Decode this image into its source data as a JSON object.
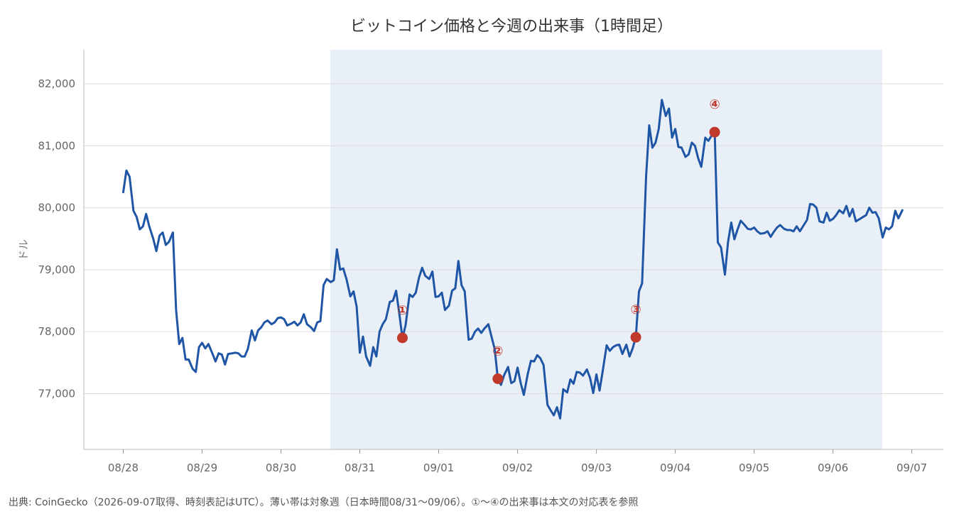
{
  "chart_data": {
    "type": "line",
    "title": "ビットコイン価格と今週の出来事（1時間足）",
    "ylabel": "ドル",
    "xlabel": "",
    "source": "出典: CoinGecko（2026-09-07取得、時刻表記はUTC）。薄い帯は対象週（日本時間08/31〜09/06）。①〜④の出来事は本文の対応表を参照",
    "ylim": [
      76100,
      82550
    ],
    "xlim": [
      -0.5,
      10.4
    ],
    "grid": true,
    "colors": {
      "line": "#1f55a5",
      "marker": "#c0392b",
      "band": "#e9eff7",
      "grid": "#dcdcdc",
      "axis": "#bbbbbb"
    },
    "x_ticks": [
      "08/28",
      "08/29",
      "08/30",
      "08/31",
      "09/01",
      "09/02",
      "09/03",
      "09/04",
      "09/05",
      "09/06",
      "09/07"
    ],
    "y_ticks": [
      {
        "value": 77000,
        "label": "77,000"
      },
      {
        "value": 78000,
        "label": "78,000"
      },
      {
        "value": 79000,
        "label": "79,000"
      },
      {
        "value": 80000,
        "label": "80,000"
      },
      {
        "value": 81000,
        "label": "81,000"
      },
      {
        "value": 82000,
        "label": "82,000"
      }
    ],
    "highlight_band": {
      "from": 2.625,
      "to": 9.625
    },
    "series": [
      {
        "points": [
          [
            0.0,
            80250
          ],
          [
            0.04,
            80600
          ],
          [
            0.08,
            80500
          ],
          [
            0.13,
            79950
          ],
          [
            0.17,
            79850
          ],
          [
            0.21,
            79650
          ],
          [
            0.25,
            79700
          ],
          [
            0.29,
            79900
          ],
          [
            0.33,
            79700
          ],
          [
            0.38,
            79500
          ],
          [
            0.42,
            79300
          ],
          [
            0.46,
            79550
          ],
          [
            0.5,
            79600
          ],
          [
            0.54,
            79400
          ],
          [
            0.58,
            79450
          ],
          [
            0.63,
            79600
          ],
          [
            0.67,
            78350
          ],
          [
            0.71,
            77800
          ],
          [
            0.75,
            77900
          ],
          [
            0.79,
            77550
          ],
          [
            0.83,
            77550
          ],
          [
            0.88,
            77400
          ],
          [
            0.92,
            77350
          ],
          [
            0.96,
            77750
          ],
          [
            1.0,
            77820
          ],
          [
            1.04,
            77730
          ],
          [
            1.08,
            77800
          ],
          [
            1.13,
            77650
          ],
          [
            1.17,
            77520
          ],
          [
            1.21,
            77650
          ],
          [
            1.25,
            77630
          ],
          [
            1.29,
            77470
          ],
          [
            1.33,
            77640
          ],
          [
            1.38,
            77650
          ],
          [
            1.42,
            77660
          ],
          [
            1.46,
            77650
          ],
          [
            1.5,
            77600
          ],
          [
            1.54,
            77600
          ],
          [
            1.58,
            77720
          ],
          [
            1.63,
            78020
          ],
          [
            1.67,
            77860
          ],
          [
            1.71,
            78020
          ],
          [
            1.75,
            78070
          ],
          [
            1.79,
            78150
          ],
          [
            1.83,
            78180
          ],
          [
            1.88,
            78120
          ],
          [
            1.92,
            78150
          ],
          [
            1.96,
            78220
          ],
          [
            2.0,
            78230
          ],
          [
            2.04,
            78200
          ],
          [
            2.08,
            78100
          ],
          [
            2.13,
            78130
          ],
          [
            2.17,
            78160
          ],
          [
            2.21,
            78100
          ],
          [
            2.25,
            78150
          ],
          [
            2.29,
            78280
          ],
          [
            2.33,
            78120
          ],
          [
            2.38,
            78070
          ],
          [
            2.42,
            78010
          ],
          [
            2.46,
            78150
          ],
          [
            2.5,
            78170
          ],
          [
            2.54,
            78750
          ],
          [
            2.58,
            78850
          ],
          [
            2.63,
            78800
          ],
          [
            2.67,
            78830
          ],
          [
            2.71,
            79330
          ],
          [
            2.75,
            79000
          ],
          [
            2.79,
            79020
          ],
          [
            2.83,
            78850
          ],
          [
            2.88,
            78570
          ],
          [
            2.92,
            78650
          ],
          [
            2.96,
            78400
          ],
          [
            3.0,
            77660
          ],
          [
            3.04,
            77920
          ],
          [
            3.08,
            77600
          ],
          [
            3.13,
            77450
          ],
          [
            3.17,
            77750
          ],
          [
            3.21,
            77600
          ],
          [
            3.25,
            78000
          ],
          [
            3.29,
            78120
          ],
          [
            3.33,
            78200
          ],
          [
            3.38,
            78480
          ],
          [
            3.42,
            78500
          ],
          [
            3.46,
            78660
          ],
          [
            3.5,
            78300
          ],
          [
            3.54,
            77900
          ],
          [
            3.58,
            78100
          ],
          [
            3.63,
            78600
          ],
          [
            3.67,
            78560
          ],
          [
            3.71,
            78630
          ],
          [
            3.75,
            78870
          ],
          [
            3.79,
            79030
          ],
          [
            3.83,
            78900
          ],
          [
            3.88,
            78850
          ],
          [
            3.92,
            78970
          ],
          [
            3.96,
            78560
          ],
          [
            4.0,
            78570
          ],
          [
            4.04,
            78630
          ],
          [
            4.08,
            78350
          ],
          [
            4.13,
            78420
          ],
          [
            4.17,
            78660
          ],
          [
            4.21,
            78700
          ],
          [
            4.25,
            79140
          ],
          [
            4.29,
            78750
          ],
          [
            4.33,
            78650
          ],
          [
            4.38,
            77870
          ],
          [
            4.42,
            77890
          ],
          [
            4.46,
            78000
          ],
          [
            4.5,
            78050
          ],
          [
            4.54,
            77980
          ],
          [
            4.58,
            78050
          ],
          [
            4.63,
            78120
          ],
          [
            4.67,
            77920
          ],
          [
            4.71,
            77720
          ],
          [
            4.75,
            77240
          ],
          [
            4.79,
            77140
          ],
          [
            4.83,
            77300
          ],
          [
            4.88,
            77430
          ],
          [
            4.92,
            77170
          ],
          [
            4.96,
            77200
          ],
          [
            5.0,
            77420
          ],
          [
            5.04,
            77170
          ],
          [
            5.08,
            76980
          ],
          [
            5.13,
            77320
          ],
          [
            5.17,
            77530
          ],
          [
            5.21,
            77520
          ],
          [
            5.25,
            77620
          ],
          [
            5.29,
            77570
          ],
          [
            5.33,
            77460
          ],
          [
            5.38,
            76820
          ],
          [
            5.42,
            76730
          ],
          [
            5.46,
            76650
          ],
          [
            5.5,
            76780
          ],
          [
            5.54,
            76600
          ],
          [
            5.58,
            77070
          ],
          [
            5.63,
            77020
          ],
          [
            5.67,
            77230
          ],
          [
            5.71,
            77160
          ],
          [
            5.75,
            77350
          ],
          [
            5.79,
            77340
          ],
          [
            5.83,
            77290
          ],
          [
            5.88,
            77390
          ],
          [
            5.92,
            77250
          ],
          [
            5.96,
            77010
          ],
          [
            6.0,
            77310
          ],
          [
            6.04,
            77050
          ],
          [
            6.08,
            77360
          ],
          [
            6.13,
            77780
          ],
          [
            6.17,
            77690
          ],
          [
            6.21,
            77750
          ],
          [
            6.25,
            77780
          ],
          [
            6.29,
            77790
          ],
          [
            6.33,
            77640
          ],
          [
            6.38,
            77790
          ],
          [
            6.42,
            77600
          ],
          [
            6.46,
            77730
          ],
          [
            6.5,
            77910
          ],
          [
            6.54,
            78650
          ],
          [
            6.58,
            78780
          ],
          [
            6.63,
            80500
          ],
          [
            6.67,
            81330
          ],
          [
            6.71,
            80970
          ],
          [
            6.75,
            81050
          ],
          [
            6.79,
            81270
          ],
          [
            6.83,
            81740
          ],
          [
            6.88,
            81480
          ],
          [
            6.92,
            81600
          ],
          [
            6.96,
            81130
          ],
          [
            7.0,
            81270
          ],
          [
            7.04,
            80980
          ],
          [
            7.08,
            80970
          ],
          [
            7.13,
            80820
          ],
          [
            7.17,
            80860
          ],
          [
            7.21,
            81050
          ],
          [
            7.25,
            81000
          ],
          [
            7.29,
            80800
          ],
          [
            7.33,
            80660
          ],
          [
            7.38,
            81130
          ],
          [
            7.42,
            81080
          ],
          [
            7.46,
            81160
          ],
          [
            7.5,
            81220
          ],
          [
            7.54,
            79440
          ],
          [
            7.58,
            79360
          ],
          [
            7.63,
            78920
          ],
          [
            7.67,
            79450
          ],
          [
            7.71,
            79760
          ],
          [
            7.75,
            79490
          ],
          [
            7.79,
            79650
          ],
          [
            7.83,
            79790
          ],
          [
            7.88,
            79720
          ],
          [
            7.92,
            79660
          ],
          [
            7.96,
            79650
          ],
          [
            8.0,
            79680
          ],
          [
            8.04,
            79620
          ],
          [
            8.08,
            79580
          ],
          [
            8.13,
            79590
          ],
          [
            8.17,
            79620
          ],
          [
            8.21,
            79530
          ],
          [
            8.25,
            79610
          ],
          [
            8.29,
            79680
          ],
          [
            8.33,
            79720
          ],
          [
            8.38,
            79660
          ],
          [
            8.42,
            79640
          ],
          [
            8.46,
            79640
          ],
          [
            8.5,
            79620
          ],
          [
            8.54,
            79700
          ],
          [
            8.58,
            79620
          ],
          [
            8.63,
            79720
          ],
          [
            8.67,
            79800
          ],
          [
            8.71,
            80060
          ],
          [
            8.75,
            80050
          ],
          [
            8.79,
            80000
          ],
          [
            8.83,
            79780
          ],
          [
            8.88,
            79760
          ],
          [
            8.92,
            79920
          ],
          [
            8.96,
            79790
          ],
          [
            9.0,
            79820
          ],
          [
            9.04,
            79880
          ],
          [
            9.08,
            79960
          ],
          [
            9.13,
            79910
          ],
          [
            9.17,
            80030
          ],
          [
            9.21,
            79860
          ],
          [
            9.25,
            79980
          ],
          [
            9.29,
            79780
          ],
          [
            9.33,
            79810
          ],
          [
            9.38,
            79850
          ],
          [
            9.42,
            79880
          ],
          [
            9.46,
            80000
          ],
          [
            9.5,
            79920
          ],
          [
            9.54,
            79930
          ],
          [
            9.58,
            79830
          ],
          [
            9.63,
            79520
          ],
          [
            9.67,
            79680
          ],
          [
            9.71,
            79650
          ],
          [
            9.75,
            79700
          ],
          [
            9.79,
            79950
          ],
          [
            9.83,
            79830
          ],
          [
            9.88,
            79960
          ]
        ]
      }
    ],
    "events": [
      {
        "x": 3.54,
        "y": 77900,
        "label": "①"
      },
      {
        "x": 4.75,
        "y": 77240,
        "label": "②"
      },
      {
        "x": 6.5,
        "y": 77910,
        "label": "③"
      },
      {
        "x": 7.5,
        "y": 81220,
        "label": "④"
      }
    ]
  }
}
